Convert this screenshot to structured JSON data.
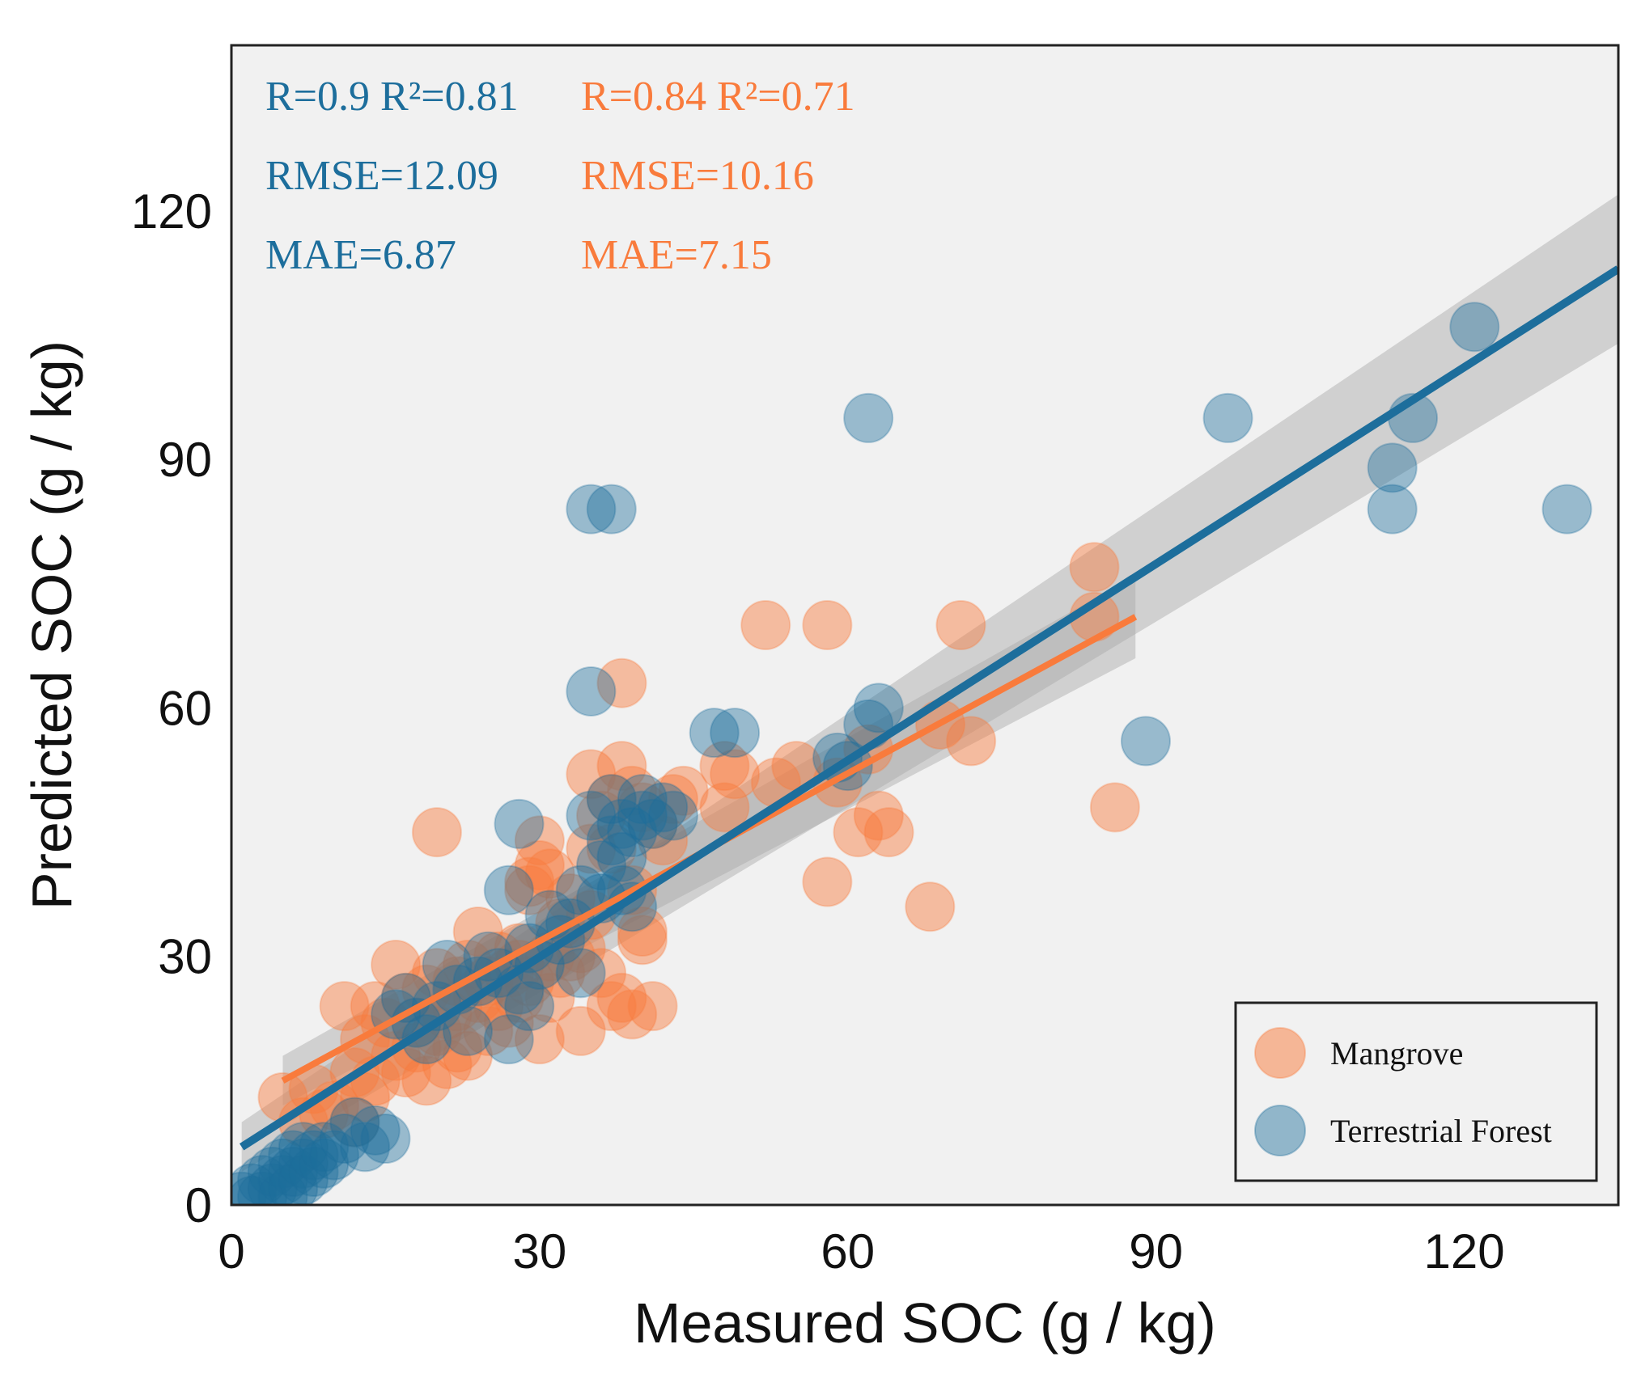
{
  "chart_data": {
    "type": "scatter",
    "xlabel": "Measured SOC (g / kg)",
    "ylabel": "Predicted SOC (g / kg)",
    "xlim": [
      0,
      135
    ],
    "ylim": [
      0,
      140
    ],
    "xticks": [
      "0",
      "30",
      "60",
      "90",
      "120"
    ],
    "yticks": [
      "0",
      "30",
      "60",
      "90",
      "120"
    ],
    "colors": {
      "mangrove": "#f97b3c",
      "forest": "#1d6e9c",
      "panel": "#f1f1f1",
      "band": "#a8a8a8"
    },
    "stats": {
      "forest": {
        "r_line": "R=0.9 R²=0.81",
        "rmse": "RMSE=12.09",
        "mae": "MAE=6.87"
      },
      "mangrove": {
        "r_line": "R=0.84 R²=0.71",
        "rmse": "RMSE=10.16",
        "mae": "MAE=7.15"
      }
    },
    "legend": {
      "position": "bottom-right",
      "entries": [
        "Mangrove",
        "Terrestrial Forest"
      ]
    },
    "series": [
      {
        "name": "Mangrove",
        "fit": {
          "x": [
            5,
            88
          ],
          "y": [
            15,
            71
          ],
          "band_halfwidth": [
            3,
            5
          ]
        },
        "points": [
          [
            5,
            13
          ],
          [
            7,
            10
          ],
          [
            8,
            14
          ],
          [
            9,
            11
          ],
          [
            10,
            12
          ],
          [
            11,
            24
          ],
          [
            12,
            16
          ],
          [
            12,
            10
          ],
          [
            13,
            20
          ],
          [
            13,
            13
          ],
          [
            14,
            24
          ],
          [
            14,
            15
          ],
          [
            15,
            22
          ],
          [
            16,
            18
          ],
          [
            16,
            29
          ],
          [
            17,
            25
          ],
          [
            17,
            16
          ],
          [
            18,
            19
          ],
          [
            18,
            22
          ],
          [
            19,
            26
          ],
          [
            19,
            15
          ],
          [
            20,
            21
          ],
          [
            20,
            28
          ],
          [
            21,
            23
          ],
          [
            21,
            17
          ],
          [
            22,
            27
          ],
          [
            22,
            19
          ],
          [
            22,
            24
          ],
          [
            23,
            29
          ],
          [
            23,
            18
          ],
          [
            24,
            25
          ],
          [
            24,
            33
          ],
          [
            25,
            21
          ],
          [
            25,
            27
          ],
          [
            26,
            30
          ],
          [
            26,
            24
          ],
          [
            27,
            22
          ],
          [
            27,
            28
          ],
          [
            28,
            31
          ],
          [
            28,
            25
          ],
          [
            29,
            39
          ],
          [
            29,
            27
          ],
          [
            30,
            20
          ],
          [
            30,
            41
          ],
          [
            30,
            44
          ],
          [
            31,
            30
          ],
          [
            31,
            25
          ],
          [
            32,
            34
          ],
          [
            32,
            28
          ],
          [
            33,
            37
          ],
          [
            33,
            30
          ],
          [
            34,
            21
          ],
          [
            34,
            31
          ],
          [
            35,
            52
          ],
          [
            35,
            35
          ],
          [
            36,
            47
          ],
          [
            36,
            28
          ],
          [
            37,
            43
          ],
          [
            37,
            49
          ],
          [
            38,
            25
          ],
          [
            38,
            53
          ],
          [
            38,
            63
          ],
          [
            39,
            50
          ],
          [
            39,
            38
          ],
          [
            39,
            23
          ],
          [
            40,
            33
          ],
          [
            40,
            48
          ],
          [
            41,
            46
          ],
          [
            41,
            24
          ],
          [
            42,
            44
          ],
          [
            43,
            49
          ],
          [
            44,
            50
          ],
          [
            48,
            48
          ],
          [
            48,
            53
          ],
          [
            49,
            52
          ],
          [
            52,
            70
          ],
          [
            53,
            51
          ],
          [
            55,
            53
          ],
          [
            58,
            70
          ],
          [
            58,
            39
          ],
          [
            59,
            51
          ],
          [
            61,
            45
          ],
          [
            62,
            55
          ],
          [
            63,
            47
          ],
          [
            64,
            45
          ],
          [
            68,
            36
          ],
          [
            69,
            58
          ],
          [
            71,
            70
          ],
          [
            72,
            56
          ],
          [
            84,
            77
          ],
          [
            84,
            71
          ],
          [
            20,
            45
          ],
          [
            86,
            48
          ],
          [
            29,
            38
          ],
          [
            31,
            40
          ],
          [
            28,
            29
          ],
          [
            35,
            43
          ],
          [
            37,
            24
          ],
          [
            40,
            32
          ]
        ]
      },
      {
        "name": "Terrestrial Forest",
        "fit": {
          "x": [
            1,
            135
          ],
          "y": [
            7,
            113
          ],
          "band_halfwidth": [
            3,
            9
          ]
        },
        "points": [
          [
            1,
            1
          ],
          [
            2,
            0.5
          ],
          [
            2,
            2
          ],
          [
            3,
            1
          ],
          [
            3,
            3
          ],
          [
            4,
            2
          ],
          [
            4,
            4
          ],
          [
            5,
            3
          ],
          [
            5,
            1
          ],
          [
            5,
            5
          ],
          [
            6,
            4
          ],
          [
            6,
            6
          ],
          [
            6,
            2
          ],
          [
            7,
            5
          ],
          [
            7,
            3
          ],
          [
            7,
            7
          ],
          [
            8,
            4
          ],
          [
            8,
            6
          ],
          [
            9,
            5
          ],
          [
            9,
            7
          ],
          [
            10,
            6
          ],
          [
            11,
            8
          ],
          [
            12,
            10
          ],
          [
            13,
            7
          ],
          [
            14,
            9
          ],
          [
            15,
            8
          ],
          [
            16,
            23
          ],
          [
            17,
            25
          ],
          [
            18,
            22
          ],
          [
            19,
            20
          ],
          [
            20,
            24
          ],
          [
            21,
            29
          ],
          [
            22,
            26
          ],
          [
            23,
            21
          ],
          [
            24,
            27
          ],
          [
            25,
            30
          ],
          [
            26,
            28
          ],
          [
            27,
            20
          ],
          [
            27,
            38
          ],
          [
            28,
            26
          ],
          [
            28,
            46
          ],
          [
            29,
            31
          ],
          [
            29,
            24
          ],
          [
            30,
            29
          ],
          [
            31,
            35
          ],
          [
            32,
            32
          ],
          [
            33,
            34
          ],
          [
            34,
            38
          ],
          [
            34,
            28
          ],
          [
            35,
            62
          ],
          [
            35,
            47
          ],
          [
            35,
            84
          ],
          [
            36,
            41
          ],
          [
            36,
            37
          ],
          [
            37,
            49
          ],
          [
            37,
            44
          ],
          [
            37,
            84
          ],
          [
            38,
            46
          ],
          [
            38,
            42
          ],
          [
            38,
            38
          ],
          [
            39,
            45
          ],
          [
            39,
            36
          ],
          [
            40,
            49
          ],
          [
            40,
            47
          ],
          [
            41,
            46
          ],
          [
            42,
            48
          ],
          [
            43,
            47
          ],
          [
            47,
            57
          ],
          [
            49,
            57
          ],
          [
            59,
            54
          ],
          [
            60,
            53
          ],
          [
            62,
            58
          ],
          [
            62,
            95
          ],
          [
            63,
            60
          ],
          [
            89,
            56
          ],
          [
            97,
            95
          ],
          [
            113,
            89
          ],
          [
            113,
            84
          ],
          [
            115,
            95
          ],
          [
            121,
            106
          ],
          [
            130,
            84
          ]
        ]
      }
    ]
  }
}
